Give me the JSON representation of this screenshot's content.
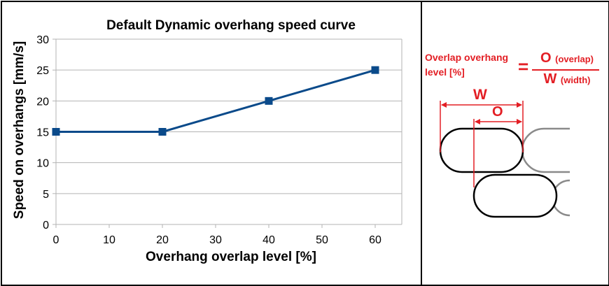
{
  "chart_data": {
    "type": "line",
    "title": "Default Dynamic overhang speed curve",
    "xlabel": "Overhang overlap level [%]",
    "ylabel": "Speed on overhangs [mm/s]",
    "xlim": [
      0,
      65
    ],
    "ylim": [
      0,
      30
    ],
    "xticks": [
      0,
      10,
      20,
      30,
      40,
      50,
      60
    ],
    "yticks": [
      0,
      5,
      10,
      15,
      20,
      25,
      30
    ],
    "grid": true,
    "series": [
      {
        "color": "#0a4a8a",
        "marker": "square",
        "x": [
          0,
          20,
          40,
          60
        ],
        "y": [
          15,
          15,
          20,
          25
        ]
      }
    ]
  },
  "diagram": {
    "label": "Overlap overhang level [%]",
    "equals": "=",
    "numerator": "O",
    "numerator_note": "(overlap)",
    "denominator": "W",
    "denominator_note": "(width)",
    "width_marker": "W",
    "overlap_marker": "O",
    "accent_color": "#e31e24"
  }
}
